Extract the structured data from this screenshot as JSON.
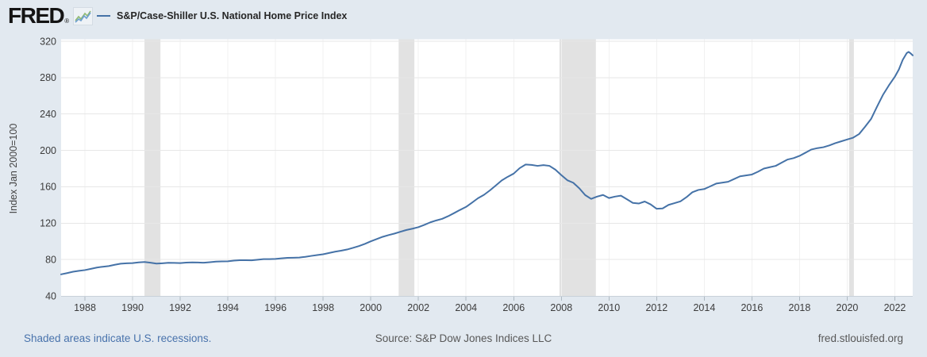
{
  "header": {
    "logo_text": "FRED",
    "registered_mark": "®",
    "legend_label": "S&P/Case-Shiller U.S. National Home Price Index"
  },
  "footer": {
    "recession_note": "Shaded areas indicate U.S. recessions.",
    "source": "Source: S&P Dow Jones Indices LLC",
    "site": "fred.stlouisfed.org"
  },
  "colors": {
    "background": "#e2e9f0",
    "plot_background": "#ffffff",
    "line": "#4572a7",
    "recession_band": "#e2e2e2",
    "h_gridline": "#e7e7e7",
    "v_gridline": "#f1f1f1",
    "axis_line": "#c8d1d9",
    "tick_mark": "#aeb9c2",
    "tick_label": "#3c3c3c",
    "axis_title": "#444444",
    "link_blue": "#4973ac"
  },
  "chart_data": {
    "type": "line",
    "title": "S&P/Case-Shiller U.S. National Home Price Index",
    "xlabel": "",
    "ylabel": "Index Jan 2000=100",
    "xlim": [
      1987.0,
      2022.75
    ],
    "ylim": [
      40,
      320
    ],
    "x_ticks": [
      1988,
      1990,
      1992,
      1994,
      1996,
      1998,
      2000,
      2002,
      2004,
      2006,
      2008,
      2010,
      2012,
      2014,
      2016,
      2018,
      2020,
      2022
    ],
    "y_ticks": [
      40,
      80,
      120,
      160,
      200,
      240,
      280,
      320
    ],
    "grid": true,
    "legend_position": "top-left",
    "recessions": [
      [
        1990.5,
        1991.17
      ],
      [
        2001.17,
        2001.83
      ],
      [
        2007.92,
        2009.45
      ],
      [
        2020.08,
        2020.28
      ]
    ],
    "series": [
      {
        "name": "S&P/Case-Shiller U.S. National Home Price Index",
        "points": [
          [
            1987.0,
            63.7
          ],
          [
            1987.25,
            65.1
          ],
          [
            1987.5,
            66.6
          ],
          [
            1987.75,
            67.6
          ],
          [
            1988.0,
            68.4
          ],
          [
            1988.25,
            69.8
          ],
          [
            1988.5,
            71.2
          ],
          [
            1988.75,
            72.1
          ],
          [
            1989.0,
            72.8
          ],
          [
            1989.25,
            74.2
          ],
          [
            1989.5,
            75.4
          ],
          [
            1989.75,
            75.9
          ],
          [
            1990.0,
            76.1
          ],
          [
            1990.25,
            76.9
          ],
          [
            1990.5,
            77.3
          ],
          [
            1990.75,
            76.5
          ],
          [
            1991.0,
            75.5
          ],
          [
            1991.25,
            75.9
          ],
          [
            1991.5,
            76.4
          ],
          [
            1991.75,
            76.3
          ],
          [
            1992.0,
            76.1
          ],
          [
            1992.25,
            76.6
          ],
          [
            1992.5,
            76.9
          ],
          [
            1992.75,
            76.7
          ],
          [
            1993.0,
            76.5
          ],
          [
            1993.25,
            77.1
          ],
          [
            1993.5,
            77.7
          ],
          [
            1993.75,
            77.9
          ],
          [
            1994.0,
            78.1
          ],
          [
            1994.25,
            78.8
          ],
          [
            1994.5,
            79.3
          ],
          [
            1994.75,
            79.2
          ],
          [
            1995.0,
            79.1
          ],
          [
            1995.25,
            79.8
          ],
          [
            1995.5,
            80.4
          ],
          [
            1995.75,
            80.5
          ],
          [
            1996.0,
            80.7
          ],
          [
            1996.25,
            81.3
          ],
          [
            1996.5,
            81.9
          ],
          [
            1996.75,
            82.0
          ],
          [
            1997.0,
            82.2
          ],
          [
            1997.25,
            83.0
          ],
          [
            1997.5,
            84.0
          ],
          [
            1997.75,
            84.9
          ],
          [
            1998.0,
            85.8
          ],
          [
            1998.25,
            87.2
          ],
          [
            1998.5,
            88.6
          ],
          [
            1998.75,
            89.7
          ],
          [
            1999.0,
            91.0
          ],
          [
            1999.25,
            92.8
          ],
          [
            1999.5,
            94.8
          ],
          [
            1999.75,
            97.2
          ],
          [
            2000.0,
            100.0
          ],
          [
            2000.25,
            102.5
          ],
          [
            2000.5,
            105.0
          ],
          [
            2000.75,
            106.9
          ],
          [
            2001.0,
            108.6
          ],
          [
            2001.25,
            110.6
          ],
          [
            2001.5,
            112.5
          ],
          [
            2001.75,
            113.9
          ],
          [
            2002.0,
            115.6
          ],
          [
            2002.25,
            118.1
          ],
          [
            2002.5,
            120.9
          ],
          [
            2002.75,
            123.0
          ],
          [
            2003.0,
            124.8
          ],
          [
            2003.25,
            127.7
          ],
          [
            2003.5,
            131.1
          ],
          [
            2003.75,
            134.6
          ],
          [
            2004.0,
            137.9
          ],
          [
            2004.25,
            142.6
          ],
          [
            2004.5,
            147.4
          ],
          [
            2004.75,
            151.1
          ],
          [
            2005.0,
            156.0
          ],
          [
            2005.25,
            161.5
          ],
          [
            2005.5,
            167.0
          ],
          [
            2005.75,
            171.0
          ],
          [
            2006.0,
            174.5
          ],
          [
            2006.25,
            180.5
          ],
          [
            2006.5,
            184.5
          ],
          [
            2006.75,
            184.0
          ],
          [
            2007.0,
            183.0
          ],
          [
            2007.25,
            183.8
          ],
          [
            2007.5,
            183.0
          ],
          [
            2007.75,
            178.8
          ],
          [
            2008.0,
            172.8
          ],
          [
            2008.25,
            167.2
          ],
          [
            2008.5,
            164.4
          ],
          [
            2008.75,
            158.4
          ],
          [
            2009.0,
            150.9
          ],
          [
            2009.25,
            146.7
          ],
          [
            2009.5,
            149.2
          ],
          [
            2009.75,
            151.0
          ],
          [
            2010.0,
            147.6
          ],
          [
            2010.25,
            149.2
          ],
          [
            2010.5,
            150.2
          ],
          [
            2010.75,
            146.3
          ],
          [
            2011.0,
            142.3
          ],
          [
            2011.25,
            141.6
          ],
          [
            2011.5,
            143.8
          ],
          [
            2011.75,
            140.6
          ],
          [
            2012.0,
            135.8
          ],
          [
            2012.25,
            136.2
          ],
          [
            2012.5,
            140.1
          ],
          [
            2012.75,
            142.0
          ],
          [
            2013.0,
            144.0
          ],
          [
            2013.25,
            148.5
          ],
          [
            2013.5,
            154.0
          ],
          [
            2013.75,
            156.5
          ],
          [
            2014.0,
            157.5
          ],
          [
            2014.25,
            160.5
          ],
          [
            2014.5,
            163.5
          ],
          [
            2014.75,
            164.5
          ],
          [
            2015.0,
            165.5
          ],
          [
            2015.25,
            168.5
          ],
          [
            2015.5,
            171.5
          ],
          [
            2015.75,
            172.5
          ],
          [
            2016.0,
            173.5
          ],
          [
            2016.25,
            176.5
          ],
          [
            2016.5,
            180.0
          ],
          [
            2016.75,
            181.5
          ],
          [
            2017.0,
            183.0
          ],
          [
            2017.25,
            186.5
          ],
          [
            2017.5,
            190.0
          ],
          [
            2017.75,
            191.5
          ],
          [
            2018.0,
            194.0
          ],
          [
            2018.25,
            197.5
          ],
          [
            2018.5,
            201.0
          ],
          [
            2018.75,
            202.5
          ],
          [
            2019.0,
            203.5
          ],
          [
            2019.25,
            205.5
          ],
          [
            2019.5,
            208.0
          ],
          [
            2019.75,
            210.0
          ],
          [
            2020.0,
            212.0
          ],
          [
            2020.25,
            214.0
          ],
          [
            2020.5,
            218.0
          ],
          [
            2020.75,
            226.0
          ],
          [
            2021.0,
            234.5
          ],
          [
            2021.25,
            248.0
          ],
          [
            2021.5,
            261.0
          ],
          [
            2021.75,
            271.5
          ],
          [
            2022.0,
            281.0
          ],
          [
            2022.17,
            289.0
          ],
          [
            2022.33,
            299.5
          ],
          [
            2022.5,
            307.0
          ],
          [
            2022.58,
            308.3
          ],
          [
            2022.67,
            306.5
          ],
          [
            2022.75,
            304.5
          ]
        ]
      }
    ]
  }
}
